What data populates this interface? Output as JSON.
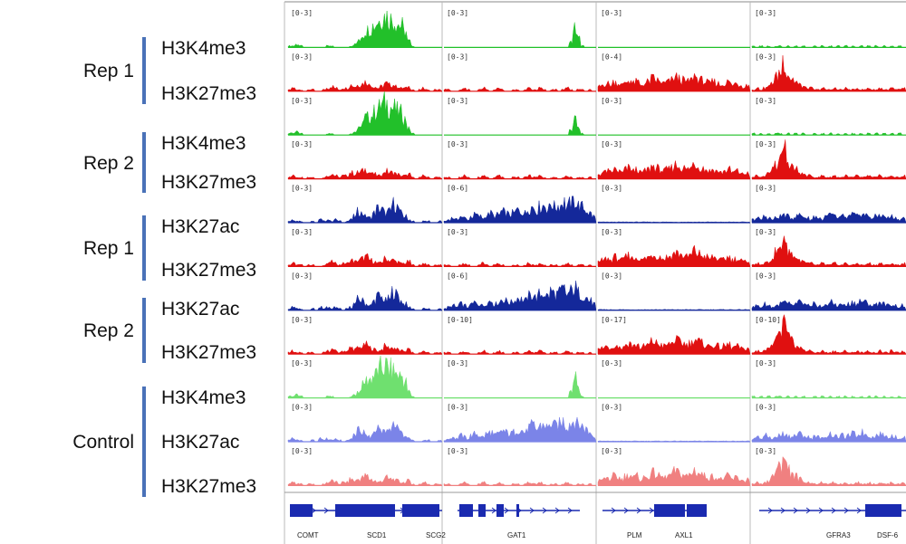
{
  "groups": [
    {
      "label": "Rep 1",
      "tracks": [
        "H3K4me3",
        "H3K27me3"
      ]
    },
    {
      "label": "Rep 2",
      "tracks": [
        "H3K4me3",
        "H3K27me3"
      ]
    },
    {
      "label": "Rep 1",
      "tracks": [
        "H3K27ac",
        "H3K27me3"
      ]
    },
    {
      "label": "Rep 2",
      "tracks": [
        "H3K27ac",
        "H3K27me3"
      ]
    },
    {
      "label": "Control",
      "tracks": [
        "H3K4me3",
        "H3K27ac",
        "H3K27me3"
      ]
    }
  ],
  "colors": {
    "H3K4me3": "#22c02a",
    "H3K27me3": "#e01010",
    "H3K27ac": "#14289a",
    "control_H3K4me3": "#6fe06f",
    "control_H3K27ac": "#7b84e8",
    "control_H3K27me3": "#f08080",
    "gene": "#1a2ab0",
    "rep_bar": "#4a72b8"
  },
  "chart_data": {
    "type": "area",
    "panels": 4,
    "range_labels": [
      [
        "[0-3]",
        "[0-3]",
        "[0-3]",
        "[0-3]",
        "[0-3]",
        "[0-3]",
        "[0-3]",
        "[0-3]",
        "[0-3]",
        "[0-3]",
        "[0-3]"
      ],
      [
        "[0-3]",
        "[0-3]",
        "[0-3]",
        "[0-3]",
        "[0-6]",
        "[0-3]",
        "[0-6]",
        "[0-10]",
        "[0-3]",
        "[0-3]",
        "[0-3]"
      ],
      [
        "[0-3]",
        "[0-4]",
        "[0-3]",
        "[0-3]",
        "[0-3]",
        "[0-3]",
        "[0-3]",
        "[0-17]",
        "[0-3]",
        "[0-3]",
        "[0-3]"
      ],
      [
        "[0-3]",
        "[0-3]",
        "[0-3]",
        "[0-3]",
        "[0-3]",
        "[0-3]",
        "[0-3]",
        "[0-10]",
        "[0-3]",
        "[0-3]",
        "[0-3]"
      ]
    ],
    "genes": [
      [
        "COMT",
        "SCD1",
        "SCG2"
      ],
      [
        "GAT1"
      ],
      [
        "PLM",
        "AXL1"
      ],
      [
        "GFRA3",
        "DSF-6"
      ]
    ],
    "signal_profiles": {
      "panel1": {
        "H3K4me3": [
          0.05,
          0.05,
          0.1,
          0.05,
          0,
          0,
          0,
          0,
          0,
          0,
          0.05,
          0.05,
          0,
          0,
          0,
          0,
          0.05,
          0.1,
          0.2,
          0.4,
          0.55,
          0.6,
          0.7,
          0.85,
          0.95,
          1.0,
          0.9,
          0.85,
          0.75,
          0.7,
          0.5,
          0.2,
          0.05,
          0,
          0,
          0,
          0,
          0,
          0,
          0
        ],
        "H3K27me3": [
          0.05,
          0.1,
          0.05,
          0.05,
          0,
          0.05,
          0.05,
          0,
          0,
          0.05,
          0.1,
          0.15,
          0.1,
          0.05,
          0.1,
          0.1,
          0.2,
          0.15,
          0.2,
          0.25,
          0.3,
          0.2,
          0.15,
          0.1,
          0.15,
          0.25,
          0.2,
          0.2,
          0.15,
          0.1,
          0.1,
          0.15,
          0.05,
          0,
          0.05,
          0.1,
          0.05,
          0,
          0.05,
          0.05
        ],
        "H3K27ac": [
          0.05,
          0.1,
          0.05,
          0.05,
          0,
          0,
          0.05,
          0,
          0.1,
          0.05,
          0.1,
          0.05,
          0.1,
          0.05,
          0,
          0.05,
          0.1,
          0.2,
          0.35,
          0.3,
          0.2,
          0.15,
          0.3,
          0.45,
          0.4,
          0.3,
          0.35,
          0.6,
          0.5,
          0.3,
          0.2,
          0.1,
          0.05,
          0,
          0,
          0.05,
          0.05,
          0,
          0,
          0.05
        ]
      },
      "panel2": {
        "H3K4me3": [
          0,
          0,
          0,
          0,
          0,
          0,
          0,
          0,
          0,
          0,
          0,
          0,
          0,
          0,
          0,
          0,
          0,
          0,
          0,
          0,
          0,
          0,
          0,
          0,
          0,
          0,
          0,
          0,
          0,
          0,
          0,
          0,
          0,
          0.2,
          0.6,
          0.3,
          0.05,
          0,
          0,
          0
        ],
        "H3K27me3": [
          0.05,
          0.05,
          0,
          0,
          0.05,
          0.1,
          0.05,
          0,
          0,
          0.05,
          0.1,
          0.05,
          0,
          0.05,
          0.1,
          0.05,
          0,
          0,
          0.05,
          0.05,
          0,
          0.05,
          0.1,
          0.05,
          0.05,
          0.1,
          0.05,
          0,
          0.05,
          0.05,
          0,
          0.05,
          0.1,
          0.05,
          0,
          0.05,
          0.05,
          0,
          0.05,
          0
        ],
        "H3K27ac": [
          0.05,
          0.1,
          0.15,
          0.1,
          0.2,
          0.15,
          0.1,
          0.2,
          0.25,
          0.2,
          0.15,
          0.25,
          0.3,
          0.2,
          0.25,
          0.35,
          0.3,
          0.25,
          0.3,
          0.4,
          0.35,
          0.3,
          0.45,
          0.5,
          0.4,
          0.5,
          0.55,
          0.45,
          0.6,
          0.5,
          0.55,
          0.65,
          0.5,
          0.6,
          0.7,
          0.55,
          0.5,
          0.4,
          0.3,
          0.2
        ]
      },
      "panel3": {
        "H3K4me3": [
          0,
          0,
          0,
          0,
          0,
          0,
          0,
          0,
          0,
          0,
          0,
          0,
          0,
          0,
          0,
          0,
          0,
          0,
          0,
          0,
          0,
          0,
          0,
          0,
          0,
          0,
          0,
          0,
          0,
          0,
          0,
          0,
          0,
          0,
          0,
          0,
          0,
          0,
          0,
          0
        ],
        "H3K27me3": [
          0.15,
          0.2,
          0.25,
          0.2,
          0.3,
          0.25,
          0.2,
          0.3,
          0.35,
          0.25,
          0.3,
          0.2,
          0.25,
          0.3,
          0.4,
          0.35,
          0.3,
          0.25,
          0.3,
          0.35,
          0.45,
          0.4,
          0.35,
          0.3,
          0.35,
          0.5,
          0.4,
          0.35,
          0.3,
          0.25,
          0.3,
          0.25,
          0.2,
          0.25,
          0.3,
          0.2,
          0.25,
          0.2,
          0.15,
          0.2
        ],
        "H3K27ac": [
          0.02,
          0.02,
          0.02,
          0.02,
          0.02,
          0.02,
          0.02,
          0.02,
          0.02,
          0.02,
          0.02,
          0.02,
          0.02,
          0.02,
          0.02,
          0.02,
          0.02,
          0.02,
          0.02,
          0.02,
          0.02,
          0.02,
          0.02,
          0.02,
          0.02,
          0.02,
          0.02,
          0.02,
          0.02,
          0.02,
          0.02,
          0.02,
          0.02,
          0.02,
          0.02,
          0.02,
          0.02,
          0.02,
          0.02,
          0.02
        ]
      },
      "panel4": {
        "H3K4me3": [
          0.05,
          0,
          0.05,
          0,
          0.05,
          0,
          0.05,
          0.05,
          0,
          0.05,
          0,
          0.05,
          0,
          0.05,
          0,
          0,
          0.05,
          0,
          0.05,
          0,
          0.05,
          0,
          0.05,
          0,
          0.05,
          0,
          0.05,
          0,
          0.05,
          0,
          0.05,
          0,
          0.05,
          0,
          0.05,
          0,
          0.05,
          0,
          0.05,
          0
        ],
        "H3K27me3": [
          0.05,
          0.1,
          0.05,
          0.1,
          0.15,
          0.3,
          0.45,
          0.6,
          1.0,
          0.55,
          0.4,
          0.3,
          0.2,
          0.15,
          0.1,
          0.1,
          0.05,
          0.05,
          0.1,
          0.05,
          0.05,
          0.1,
          0.05,
          0.05,
          0.1,
          0.05,
          0.05,
          0.1,
          0.05,
          0.05,
          0.1,
          0.05,
          0.05,
          0.1,
          0.05,
          0.05,
          0.1,
          0.05,
          0.05,
          0.1
        ],
        "H3K27ac": [
          0.1,
          0.15,
          0.1,
          0.2,
          0.15,
          0.1,
          0.15,
          0.2,
          0.25,
          0.2,
          0.15,
          0.2,
          0.25,
          0.2,
          0.15,
          0.1,
          0.2,
          0.15,
          0.1,
          0.2,
          0.25,
          0.2,
          0.15,
          0.2,
          0.15,
          0.2,
          0.25,
          0.2,
          0.3,
          0.25,
          0.2,
          0.15,
          0.2,
          0.25,
          0.2,
          0.15,
          0.2,
          0.15,
          0.1,
          0.15
        ]
      }
    }
  }
}
